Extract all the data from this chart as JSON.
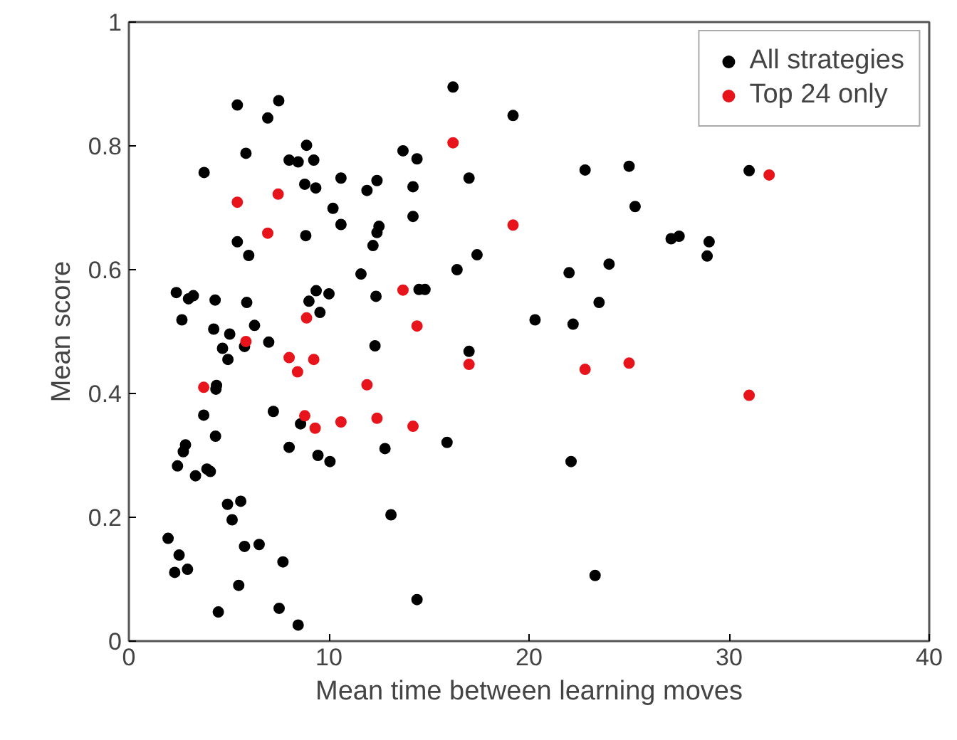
{
  "chart_data": {
    "type": "scatter",
    "xlabel": "Mean time between learning moves",
    "ylabel": "Mean score",
    "xlim": [
      0,
      40
    ],
    "ylim": [
      0,
      1
    ],
    "xticks": [
      0,
      10,
      20,
      30,
      40
    ],
    "yticks": [
      0,
      {
        "value": 0.2,
        "label": "0.2"
      },
      {
        "value": 0.4,
        "label": "0.4"
      },
      {
        "value": 0.6,
        "label": "0.6"
      },
      {
        "value": 0.8,
        "label": "0.8"
      },
      1
    ],
    "grid": false,
    "legend": "top right",
    "marker": "circle",
    "series": [
      {
        "name": "All strategies",
        "color": "#000000",
        "x": [
          5.42,
          7.49,
          6.94,
          5.85,
          3.76,
          8.01,
          8.46,
          8.88,
          9.24,
          8.79,
          9.34,
          10.6,
          12.4,
          11.9,
          13.7,
          10.2,
          10.6,
          12.5,
          12.4,
          12.2,
          8.84,
          5.42,
          5.99,
          11.6,
          2.37,
          2.98,
          3.22,
          4.31,
          5.89,
          9.36,
          10.0,
          9.0,
          9.55,
          12.35,
          2.65,
          4.24,
          5.04,
          6.28,
          4.68,
          4.95,
          5.78,
          6.99,
          12.3,
          4.38,
          4.35,
          3.74,
          7.22,
          8.58,
          4.33,
          2.83,
          2.72,
          2.43,
          3.33,
          3.9,
          4.07,
          8.01,
          9.45,
          10.05,
          12.8,
          13.1,
          4.93,
          5.59,
          5.16,
          1.96,
          2.51,
          2.29,
          2.93,
          5.78,
          6.51,
          7.7,
          5.49,
          4.47,
          7.51,
          8.46,
          16.2,
          19.2,
          14.4,
          14.2,
          17.0,
          22.8,
          25.0,
          25.3,
          14.2,
          17.4,
          16.4,
          24.0,
          22.0,
          14.5,
          14.8,
          23.5,
          20.3,
          22.2,
          17.0,
          15.9,
          22.1,
          23.3,
          14.4,
          31.0,
          27.5,
          27.1,
          29.0,
          28.9
        ],
        "values": [
          0.866,
          0.873,
          0.845,
          0.788,
          0.757,
          0.777,
          0.774,
          0.801,
          0.777,
          0.738,
          0.732,
          0.748,
          0.744,
          0.728,
          0.792,
          0.699,
          0.673,
          0.67,
          0.66,
          0.639,
          0.655,
          0.645,
          0.623,
          0.593,
          0.563,
          0.553,
          0.558,
          0.551,
          0.547,
          0.566,
          0.561,
          0.549,
          0.531,
          0.557,
          0.519,
          0.504,
          0.496,
          0.51,
          0.473,
          0.455,
          0.476,
          0.483,
          0.477,
          0.413,
          0.407,
          0.365,
          0.371,
          0.351,
          0.331,
          0.317,
          0.306,
          0.283,
          0.267,
          0.278,
          0.274,
          0.313,
          0.3,
          0.29,
          0.311,
          0.204,
          0.221,
          0.226,
          0.196,
          0.166,
          0.139,
          0.111,
          0.116,
          0.153,
          0.156,
          0.128,
          0.09,
          0.047,
          0.053,
          0.026,
          0.895,
          0.849,
          0.779,
          0.734,
          0.748,
          0.761,
          0.767,
          0.702,
          0.686,
          0.624,
          0.6,
          0.609,
          0.595,
          0.568,
          0.568,
          0.547,
          0.519,
          0.512,
          0.468,
          0.321,
          0.29,
          0.106,
          0.067,
          0.76,
          0.654,
          0.65,
          0.645,
          0.622
        ]
      },
      {
        "name": "Top 24 only",
        "color": "#e8141c",
        "x": [
          5.42,
          7.46,
          6.94,
          8.88,
          13.7,
          5.85,
          8.01,
          9.24,
          8.43,
          3.74,
          11.9,
          8.79,
          9.31,
          10.6,
          12.4,
          16.2,
          19.2,
          14.4,
          17.0,
          14.2,
          22.8,
          25.0,
          32.0,
          31.0
        ],
        "values": [
          0.709,
          0.722,
          0.659,
          0.522,
          0.567,
          0.484,
          0.458,
          0.455,
          0.435,
          0.41,
          0.414,
          0.364,
          0.344,
          0.354,
          0.36,
          0.805,
          0.672,
          0.509,
          0.447,
          0.347,
          0.439,
          0.449,
          0.753,
          0.397
        ]
      }
    ]
  }
}
